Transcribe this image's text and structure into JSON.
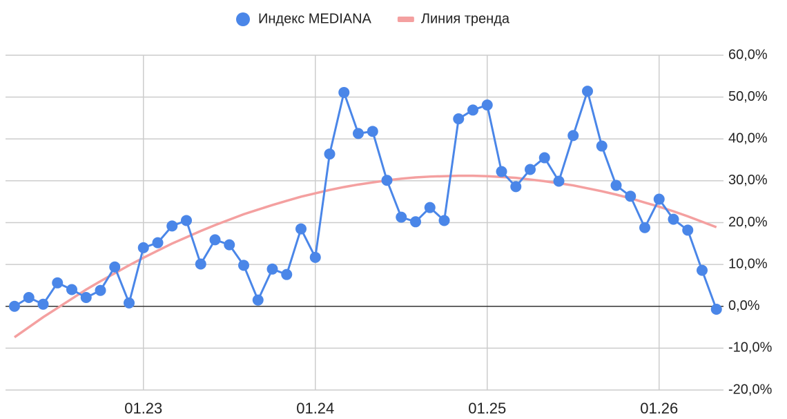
{
  "chart_data": {
    "type": "line",
    "categories": [
      null,
      null,
      null,
      null,
      null,
      null,
      null,
      null,
      null,
      "01.23",
      null,
      null,
      null,
      null,
      null,
      null,
      null,
      null,
      null,
      null,
      null,
      "01.24",
      null,
      null,
      null,
      null,
      null,
      null,
      null,
      null,
      null,
      null,
      null,
      "01.25",
      null,
      null,
      null,
      null,
      null,
      null,
      null,
      null,
      null,
      null,
      null,
      "01.26",
      null,
      null,
      null,
      null
    ],
    "series": [
      {
        "name": "Индекс MEDIANA",
        "color": "#4a86e8",
        "values": [
          0.0,
          2.1,
          0.5,
          5.6,
          4.0,
          2.1,
          3.8,
          9.4,
          0.8,
          14.0,
          15.2,
          19.2,
          20.5,
          10.1,
          15.9,
          14.7,
          9.8,
          1.5,
          8.9,
          7.6,
          18.5,
          11.7,
          36.4,
          51.1,
          41.3,
          41.8,
          30.1,
          21.3,
          20.2,
          23.6,
          20.5,
          44.8,
          46.9,
          48.1,
          32.2,
          28.6,
          32.7,
          35.5,
          29.9,
          40.8,
          51.4,
          38.3,
          28.9,
          26.3,
          18.8,
          25.6,
          20.8,
          18.2,
          8.6,
          -0.7
        ]
      },
      {
        "name": "Линия тренда",
        "color": "#f4a0a0",
        "values": [
          -7.4,
          -5.0,
          -2.6,
          -0.4,
          1.8,
          4.0,
          6.0,
          7.9,
          9.8,
          11.6,
          13.3,
          15.0,
          16.5,
          18.0,
          19.4,
          20.7,
          22.0,
          23.1,
          24.2,
          25.2,
          26.2,
          27.0,
          27.8,
          28.5,
          29.1,
          29.6,
          30.1,
          30.5,
          30.8,
          31.0,
          31.1,
          31.2,
          31.2,
          31.1,
          30.9,
          30.7,
          30.3,
          29.9,
          29.4,
          28.9,
          28.2,
          27.5,
          26.7,
          25.8,
          24.8,
          23.8,
          22.7,
          21.5,
          20.2,
          18.9
        ]
      }
    ],
    "ylim": [
      -20,
      60
    ],
    "yticks": [
      {
        "value": -20,
        "label": "-20,0%"
      },
      {
        "value": -10,
        "label": "-10,0%"
      },
      {
        "value": 0,
        "label": "0,0%"
      },
      {
        "value": 10,
        "label": "10,0%"
      },
      {
        "value": 20,
        "label": "20,0%"
      },
      {
        "value": 30,
        "label": "30,0%"
      },
      {
        "value": 40,
        "label": "40,0%"
      },
      {
        "value": 50,
        "label": "50,0%"
      },
      {
        "value": 60,
        "label": "60,0%"
      }
    ],
    "grid": true,
    "legend": "top"
  }
}
